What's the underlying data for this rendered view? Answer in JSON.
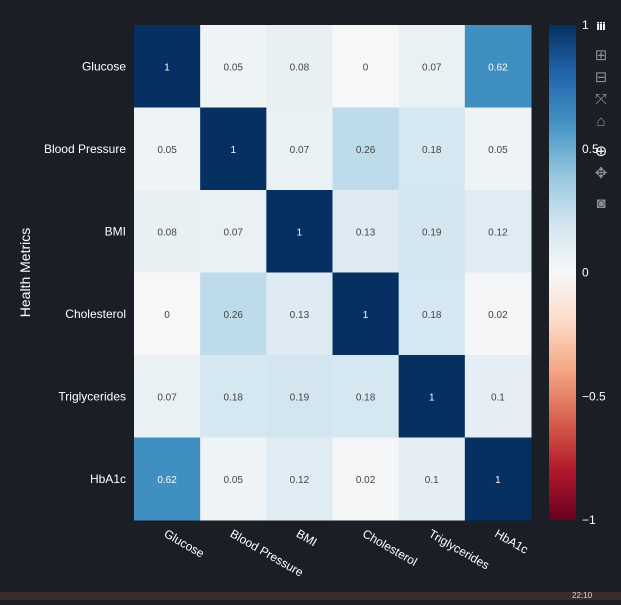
{
  "chart_data": {
    "type": "heatmap",
    "title": "",
    "ylabel": "Health Metrics",
    "xlabel": "",
    "rows": [
      "Glucose",
      "Blood Pressure",
      "BMI",
      "Cholesterol",
      "Triglycerides",
      "HbA1c"
    ],
    "columns": [
      "Glucose",
      "Blood Pressure",
      "BMI",
      "Cholesterol",
      "Triglycerides",
      "HbA1c"
    ],
    "values": [
      [
        1,
        0.05,
        0.08,
        0,
        0.07,
        0.62
      ],
      [
        0.05,
        1,
        0.07,
        0.26,
        0.18,
        0.05
      ],
      [
        0.08,
        0.07,
        1,
        0.13,
        0.19,
        0.12
      ],
      [
        0,
        0.26,
        0.13,
        1,
        0.18,
        0.02
      ],
      [
        0.07,
        0.18,
        0.19,
        0.18,
        1,
        0.1
      ],
      [
        0.62,
        0.05,
        0.12,
        0.02,
        0.1,
        1
      ]
    ],
    "value_labels": [
      [
        "1",
        "0.05",
        "0.08",
        "0",
        "0.07",
        "0.62"
      ],
      [
        "0.05",
        "1",
        "0.07",
        "0.26",
        "0.18",
        "0.05"
      ],
      [
        "0.08",
        "0.07",
        "1",
        "0.13",
        "0.19",
        "0.12"
      ],
      [
        "0",
        "0.26",
        "0.13",
        "1",
        "0.18",
        "0.02"
      ],
      [
        "0.07",
        "0.18",
        "0.19",
        "0.18",
        "1",
        "0.1"
      ],
      [
        "0.62",
        "0.05",
        "0.12",
        "0.02",
        "0.1",
        "1"
      ]
    ],
    "colorscale": "RdBu",
    "zmin": -1,
    "zmax": 1,
    "colorbar_ticks": [
      1,
      0.5,
      0,
      -0.5,
      -1
    ],
    "colorbar_tick_labels": [
      "1",
      "0.5",
      "0",
      "−0.5",
      "−1"
    ]
  },
  "colors": {
    "background": "#1c1e26",
    "text": "#ffffff",
    "cell_dark_text": "#444444",
    "cell_light_text": "#ffffff"
  },
  "modebar": {
    "icons": [
      "plotly-logo-icon",
      "zoom-in-icon",
      "zoom-out-icon",
      "autoscale-icon",
      "reset-axes-icon",
      "zoom-icon",
      "pan-icon",
      "camera-icon"
    ]
  },
  "footer": {
    "time": "22:10"
  }
}
